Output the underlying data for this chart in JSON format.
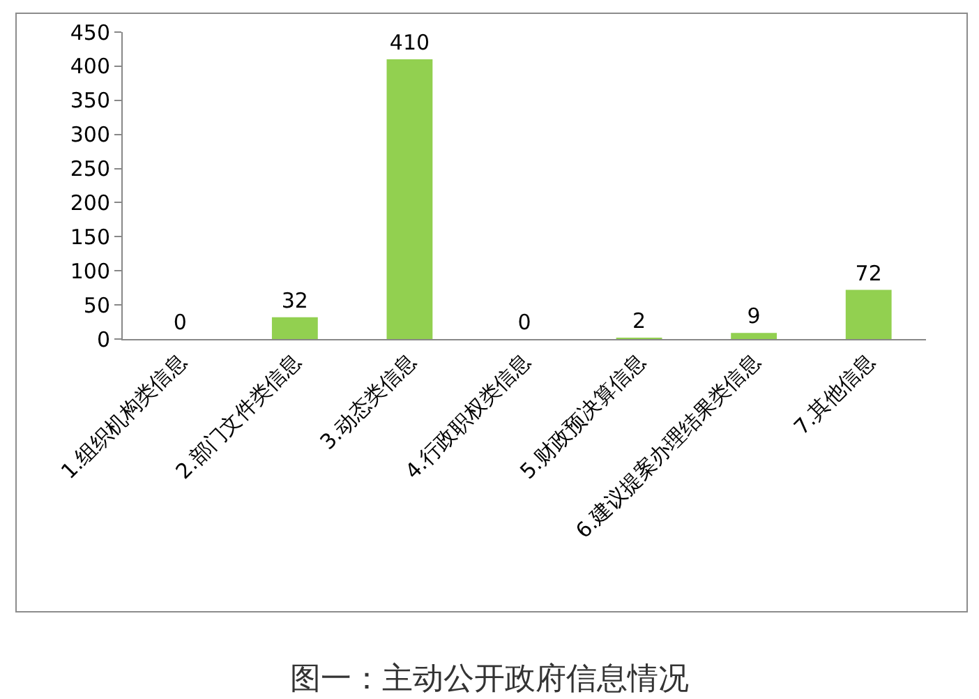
{
  "chart_data": {
    "type": "bar",
    "title": "图一：主动公开政府信息情况",
    "categories": [
      "1.组织机构类信息",
      "2.部门文件类信息",
      "3.动态类信息",
      "4.行政职权类信息",
      "5.财政预决算信息",
      "6.建议提案办理结果类信息",
      "7.其他信息"
    ],
    "values": [
      0,
      32,
      410,
      0,
      2,
      9,
      72
    ],
    "color": "#92d050",
    "ylim": [
      0,
      450
    ],
    "yticks": [
      0,
      50,
      100,
      150,
      200,
      250,
      300,
      350,
      400,
      450
    ],
    "grid": false,
    "data_labels": true
  }
}
